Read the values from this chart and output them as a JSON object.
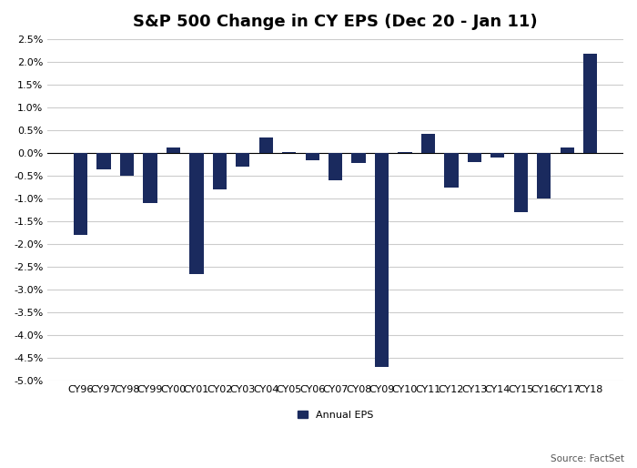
{
  "title": "S&P 500 Change in CY EPS (Dec 20 - Jan 11)",
  "xlabel": "",
  "ylabel": "",
  "categories": [
    "CY96",
    "CY97",
    "CY98",
    "CY99",
    "CY00",
    "CY01",
    "CY02",
    "CY03",
    "CY04",
    "CY05",
    "CY06",
    "CY07",
    "CY08",
    "CY09",
    "CY10",
    "CY11",
    "CY12",
    "CY13",
    "CY14",
    "CY15",
    "CY16",
    "CY17",
    "CY18"
  ],
  "values": [
    -1.8,
    -0.35,
    -0.5,
    -1.1,
    0.13,
    -2.65,
    -0.8,
    -0.3,
    0.35,
    0.02,
    -0.15,
    -0.6,
    -0.22,
    -4.7,
    0.03,
    0.42,
    -0.75,
    -0.2,
    -0.1,
    -1.3,
    -1.0,
    0.12,
    2.18
  ],
  "bar_color": "#1a2a5e",
  "ylim": [
    -5.0,
    2.5
  ],
  "yticks": [
    -5.0,
    -4.5,
    -4.0,
    -3.5,
    -3.0,
    -2.5,
    -2.0,
    -1.5,
    -1.0,
    -0.5,
    0.0,
    0.5,
    1.0,
    1.5,
    2.0,
    2.5
  ],
  "legend_label": "Annual EPS",
  "source_text": "Source: FactSet",
  "background_color": "#ffffff",
  "grid_color": "#cccccc",
  "title_fontsize": 13,
  "tick_fontsize": 8,
  "legend_fontsize": 8
}
